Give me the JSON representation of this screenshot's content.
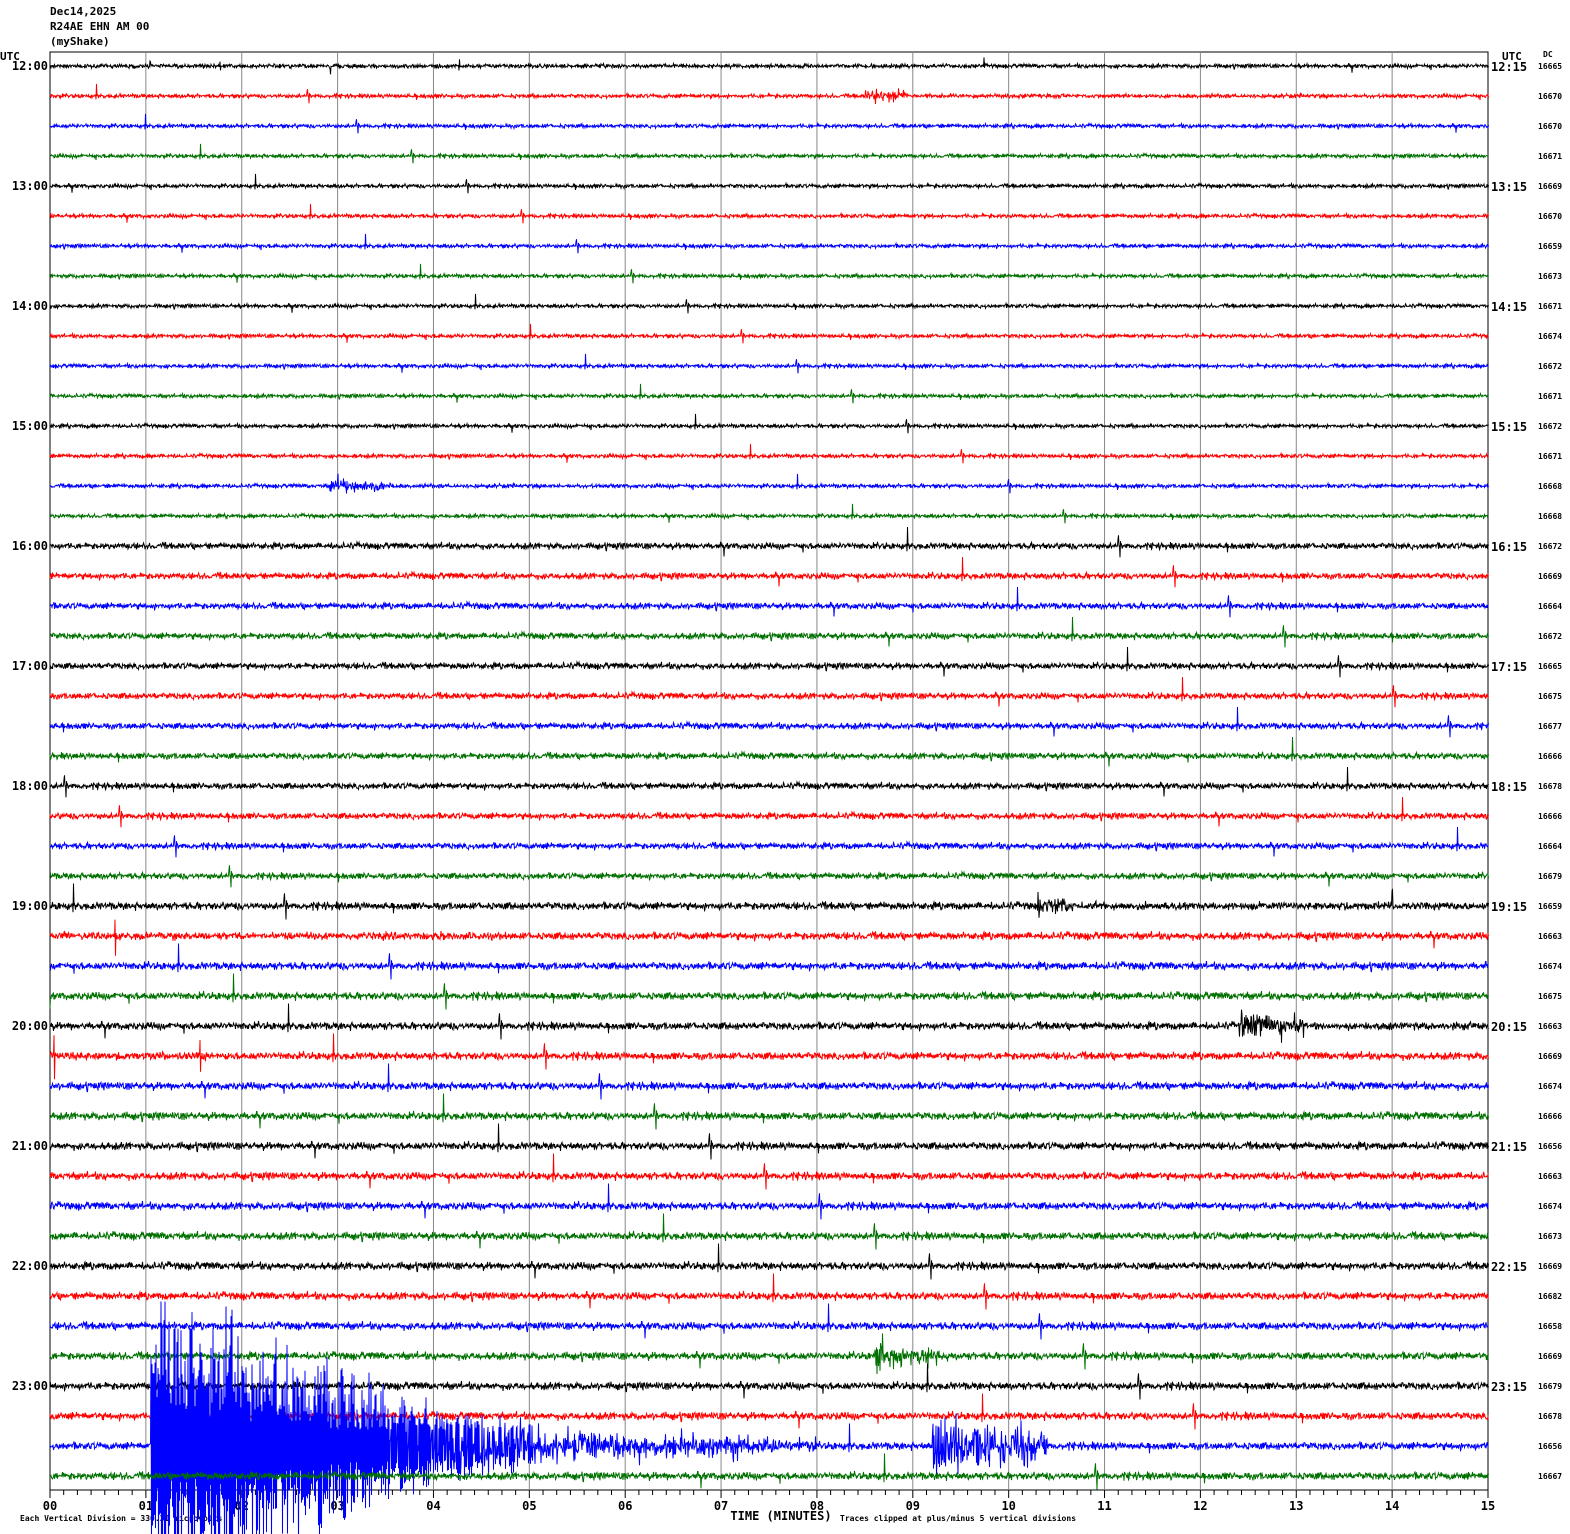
{
  "header": {
    "date": "Dec14,2025",
    "station": "R24AE EHN AM 00",
    "network": "(myShake)"
  },
  "chart_data": {
    "type": "line",
    "subtype": "helicorder",
    "left_axis_label": "UTC",
    "right_axis_label": "UTC",
    "dc_label": "DC",
    "xlabel": "TIME (MINUTES)",
    "x_ticks": [
      "00",
      "01",
      "02",
      "03",
      "04",
      "05",
      "06",
      "07",
      "08",
      "09",
      "10",
      "11",
      "12",
      "13",
      "14",
      "15"
    ],
    "xlim": [
      0,
      15
    ],
    "grid": true,
    "left_hour_labels": [
      "12:00",
      "13:00",
      "14:00",
      "15:00",
      "16:00",
      "17:00",
      "18:00",
      "19:00",
      "20:00",
      "21:00",
      "22:00",
      "23:00"
    ],
    "right_labels": [
      "12:15",
      "13:15",
      "14:15",
      "15:15",
      "16:15",
      "17:15",
      "18:15",
      "19:15",
      "20:15",
      "21:15",
      "22:15",
      "23:15"
    ],
    "trace_colors": [
      "#000000",
      "#ff0000",
      "#0000ff",
      "#007000"
    ],
    "dc_values": [
      "16665",
      "16670",
      "16670",
      "16671",
      "16669",
      "16670",
      "16659",
      "16673",
      "16671",
      "16674",
      "16672",
      "16671",
      "16672",
      "16671",
      "16668",
      "16668",
      "16672",
      "16669",
      "16664",
      "16672",
      "16665",
      "16675",
      "16677",
      "16666",
      "16678",
      "16666",
      "16664",
      "16679",
      "16659",
      "16663",
      "16674",
      "16675",
      "16663",
      "16669",
      "16674",
      "16666",
      "16656",
      "16663",
      "16674",
      "16673",
      "16669",
      "16682",
      "16658",
      "16669",
      "16679",
      "16678",
      "16656",
      "16667"
    ],
    "events": [
      {
        "row": 46,
        "start_min": 1.05,
        "end_min": 3.0,
        "amplitude_div": 5.0
      },
      {
        "row": 46,
        "start_min": 3.0,
        "end_min": 4.2,
        "amplitude_div": 2.5
      },
      {
        "row": 46,
        "start_min": 4.2,
        "end_min": 5.2,
        "amplitude_div": 1.2
      },
      {
        "row": 46,
        "start_min": 5.2,
        "end_min": 8.0,
        "amplitude_div": 0.5
      },
      {
        "row": 46,
        "start_min": 9.2,
        "end_min": 10.4,
        "amplitude_div": 1.0
      },
      {
        "row": 32,
        "start_min": 12.4,
        "end_min": 13.1,
        "amplitude_div": 0.5
      },
      {
        "row": 1,
        "start_min": 8.5,
        "end_min": 8.95,
        "amplitude_div": 0.3
      },
      {
        "row": 14,
        "start_min": 2.9,
        "end_min": 3.5,
        "amplitude_div": 0.3
      },
      {
        "row": 28,
        "start_min": 10.3,
        "end_min": 10.7,
        "amplitude_div": 0.35
      },
      {
        "row": 43,
        "start_min": 8.6,
        "end_min": 9.4,
        "amplitude_div": 0.4
      }
    ],
    "clipping": "Traces clipped at plus/minus 5 vertical divisions",
    "scale": "Each Vertical Division =  330.30 microvolts"
  }
}
